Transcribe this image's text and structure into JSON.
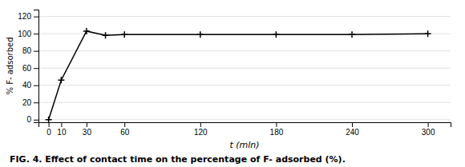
{
  "chart_data": {
    "type": "line",
    "title": "FIG. 4. Effect of contact time on the percentage of F- adsorbed (%).",
    "x": [
      0,
      10,
      30,
      45,
      60,
      120,
      180,
      240,
      300
    ],
    "y": [
      0,
      46,
      103,
      98,
      99,
      99,
      99,
      99,
      100
    ],
    "xlim": [
      -8,
      318
    ],
    "ylim": [
      -3,
      128
    ],
    "xticks": [
      0,
      10,
      30,
      60,
      120,
      180,
      240,
      300
    ],
    "yticks": [
      0,
      20,
      40,
      60,
      80,
      100,
      120
    ],
    "xlabel": "t (mln)",
    "ylabel": "% F- adsorbed",
    "marker": "+",
    "color": "#000000",
    "grid": "y"
  }
}
